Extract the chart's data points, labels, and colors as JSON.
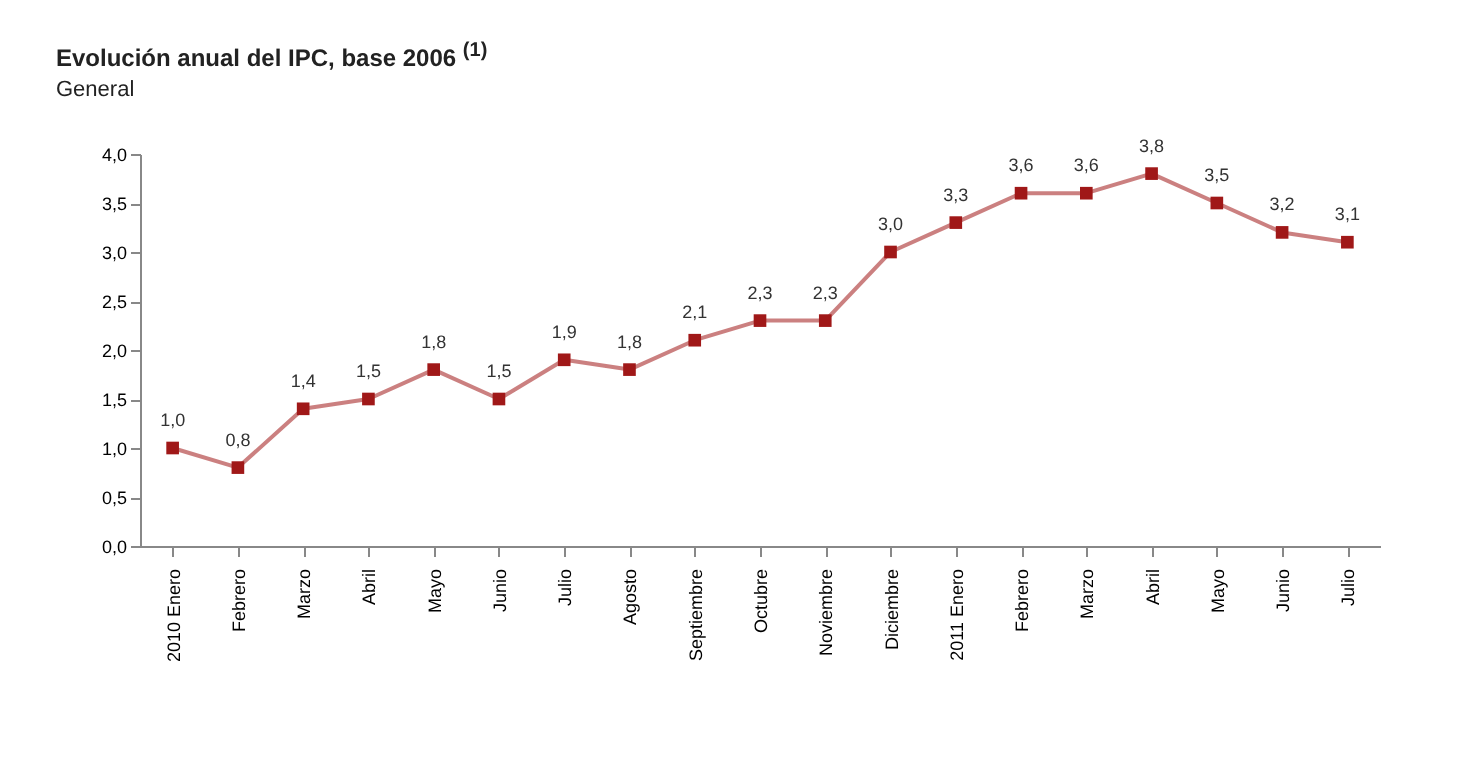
{
  "chart_data": {
    "type": "line",
    "title": "Evolución anual del IPC, base 2006 $^{(1)}$",
    "subtitle": "General",
    "categories": [
      "2010 Enero",
      "Febrero",
      "Marzo",
      "Abril",
      "Mayo",
      "Junio",
      "Julio",
      "Agosto",
      "Septiembre",
      "Octubre",
      "Noviembre",
      "Diciembre",
      "2011 Enero",
      "Febrero",
      "Marzo",
      "Abril",
      "Mayo",
      "Junio",
      "Julio"
    ],
    "series": [
      {
        "color": "#a01818",
        "values": [
          1.0,
          0.8,
          1.4,
          1.5,
          1.8,
          1.5,
          1.9,
          1.8,
          2.1,
          2.3,
          2.3,
          3.0,
          3.3,
          3.6,
          3.6,
          3.8,
          3.5,
          3.2,
          3.1
        ],
        "value_labels": [
          "1,0",
          "0,8",
          "1,4",
          "1,5",
          "1,8",
          "1,5",
          "1,9",
          "1,8",
          "2,1",
          "2,3",
          "2,3",
          "3,0",
          "3,3",
          "3,6",
          "3,6",
          "3,8",
          "3,5",
          "3,2",
          "3,1"
        ]
      }
    ],
    "ylim": [
      0,
      4
    ],
    "yticks": [
      {
        "value": 0,
        "label": "0,0"
      },
      {
        "value": 0.5,
        "label": "0,5"
      },
      {
        "value": 1,
        "label": "1,0"
      },
      {
        "value": 1.5,
        "label": "1,5"
      },
      {
        "value": 2,
        "label": "2,0"
      },
      {
        "value": 2.5,
        "label": "2,5"
      },
      {
        "value": 3,
        "label": "3,0"
      },
      {
        "value": 3.5,
        "label": "3,5"
      },
      {
        "value": 4,
        "label": "4,0"
      }
    ],
    "marker": "square",
    "line_style": "solid",
    "grid": false
  }
}
